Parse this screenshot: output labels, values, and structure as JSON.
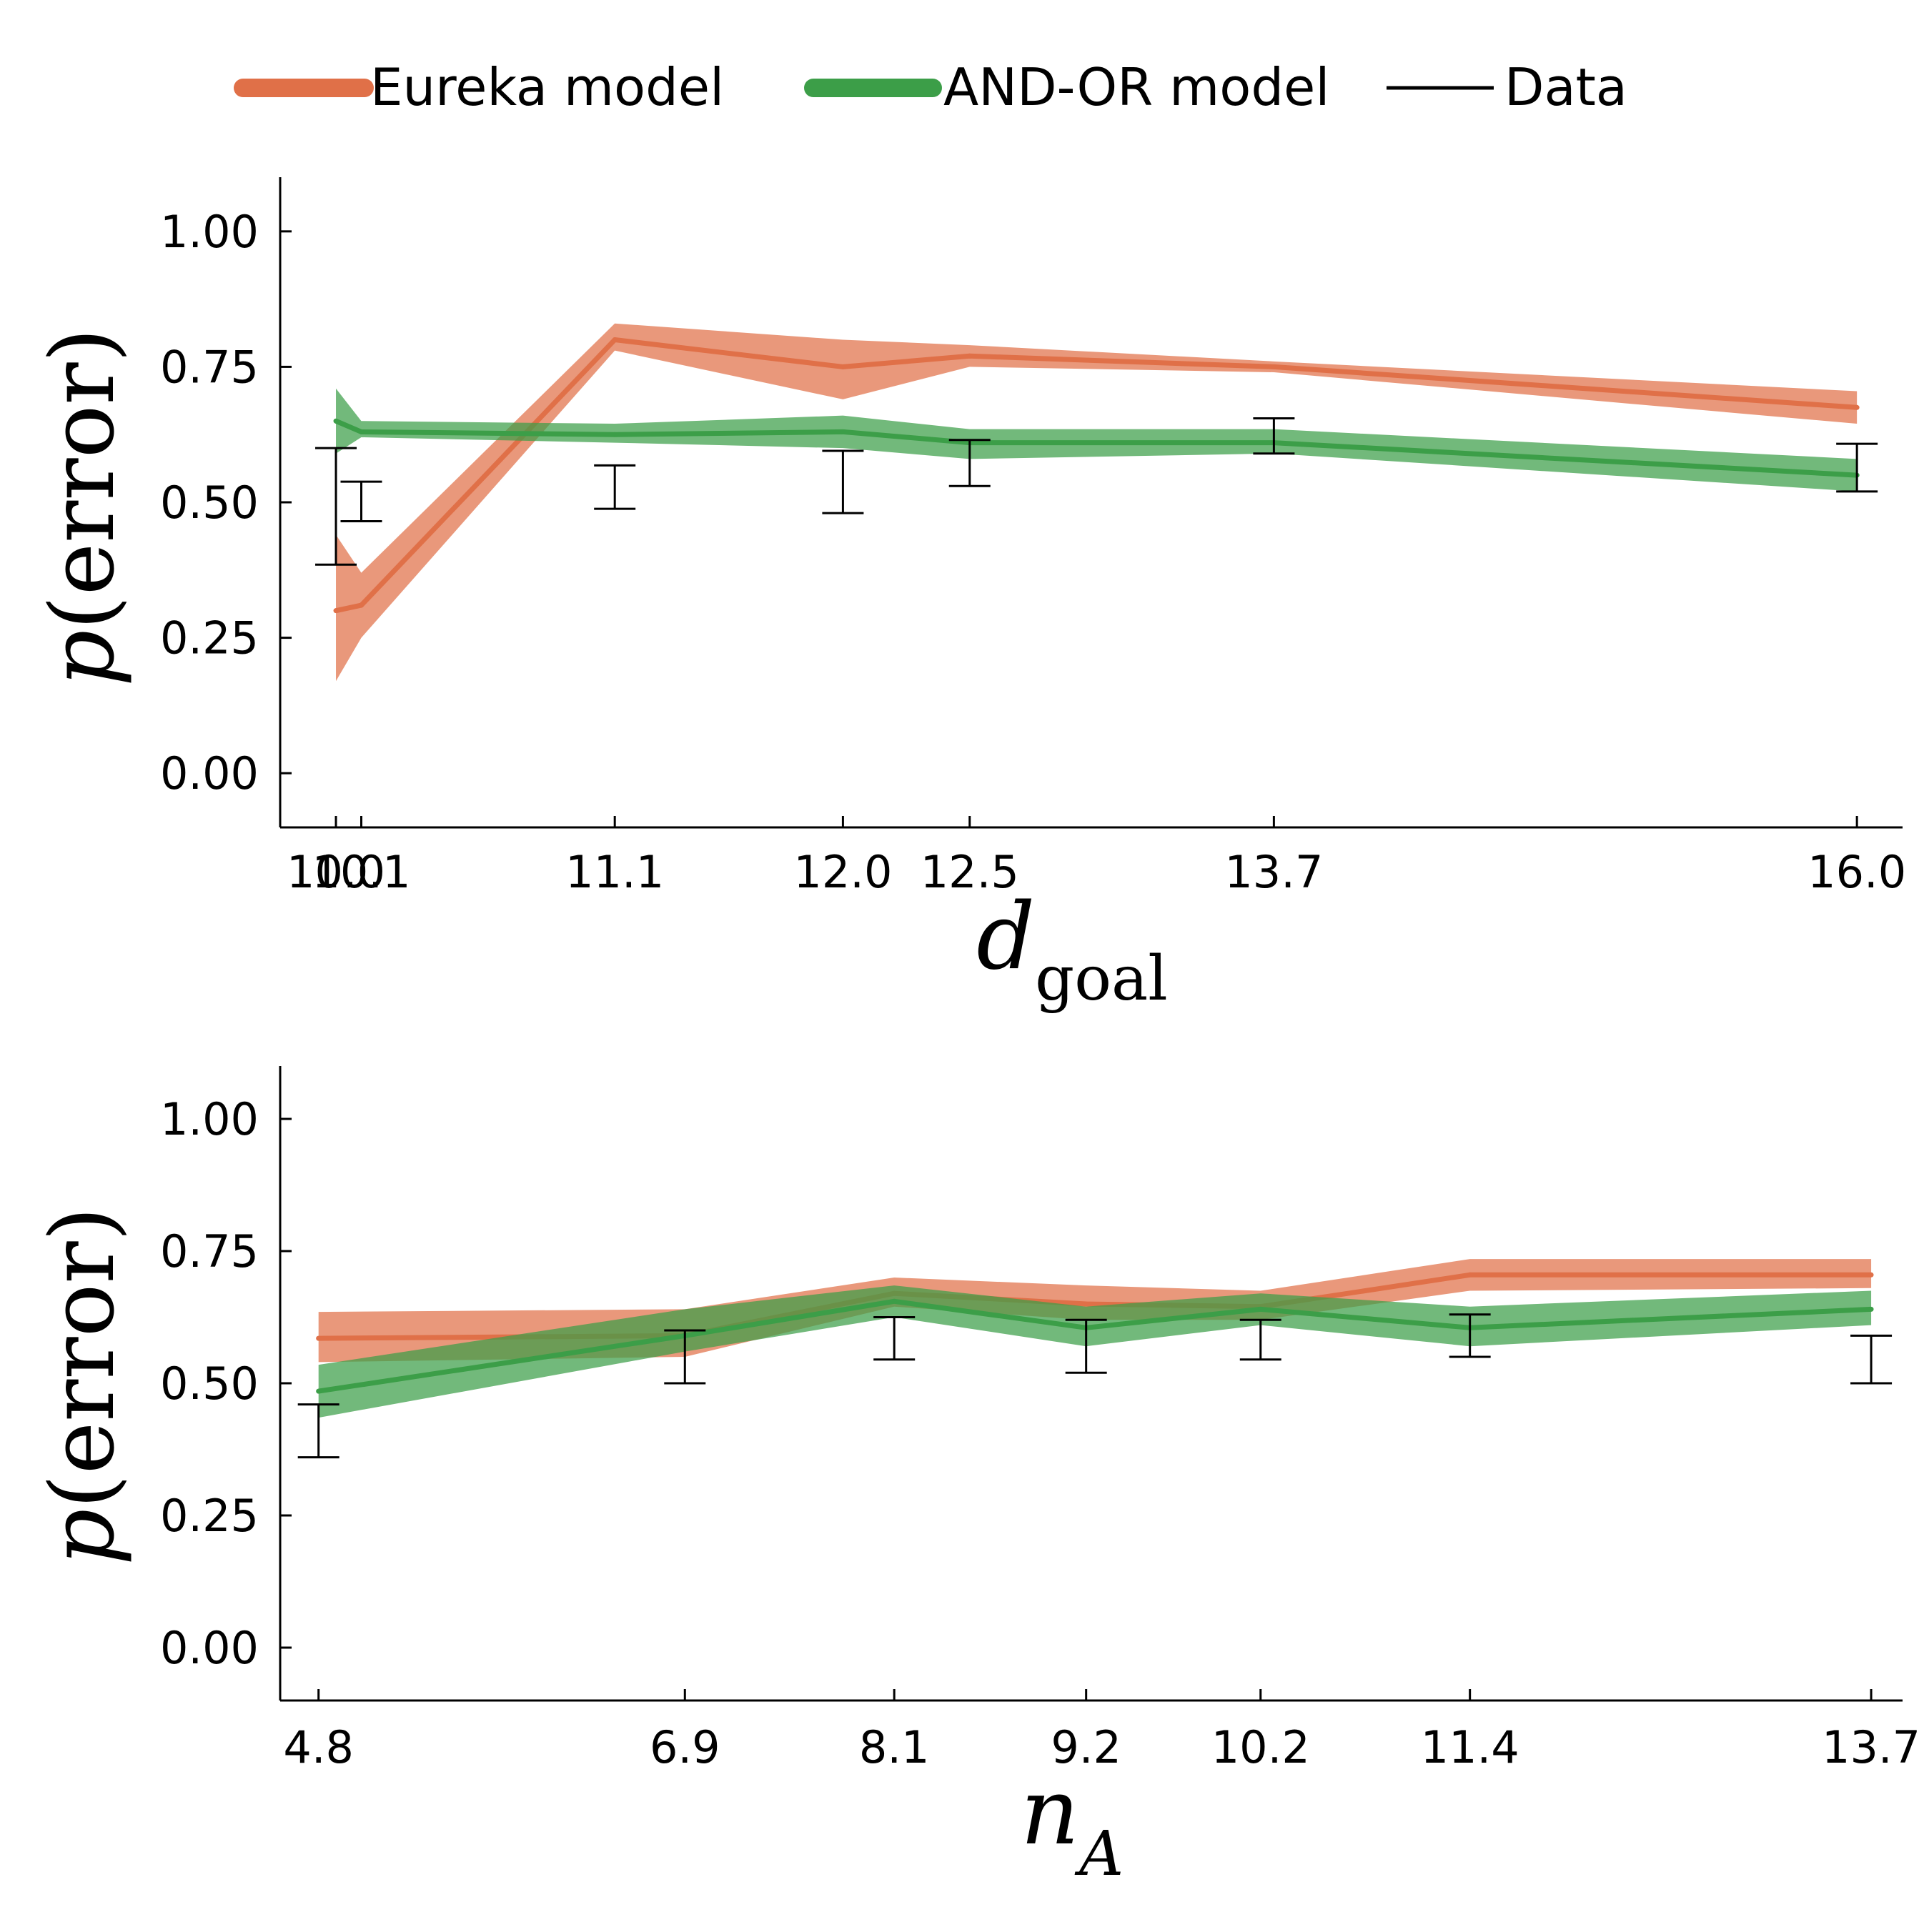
{
  "legend": {
    "position": "top",
    "entries": [
      {
        "label": "Eureka model",
        "color": "#e07048",
        "style": "thick-line"
      },
      {
        "label": "AND-OR model",
        "color": "#3c9e48",
        "style": "thick-line"
      },
      {
        "label": "Data",
        "color": "#000000",
        "style": "thin-line"
      }
    ]
  },
  "colors": {
    "eureka": "#e07048",
    "andor": "#3c9e48",
    "data": "#000000"
  },
  "chart_data": [
    {
      "type": "line",
      "ylabel": "p(error)",
      "xlabel": "d_goal",
      "xlabel_main": "d",
      "xlabel_sub": "goal",
      "ylim": [
        -0.1,
        1.1
      ],
      "xlim": [
        9.78,
        16.18
      ],
      "yticks": [
        0.0,
        0.25,
        0.5,
        0.75,
        1.0
      ],
      "ytick_labels": [
        "0.00",
        "0.25",
        "0.50",
        "0.75",
        "1.00"
      ],
      "x": [
        10.0,
        10.1,
        11.1,
        12.0,
        12.5,
        13.7,
        16.0
      ],
      "xtick_labels": [
        "10.0",
        "10.1",
        "11.1",
        "12.0",
        "12.5",
        "13.7",
        "16.0"
      ],
      "grid": false,
      "series": [
        {
          "name": "Eureka model",
          "key": "eureka",
          "mean": [
            0.3,
            0.31,
            0.8,
            0.75,
            0.77,
            0.75,
            0.675
          ],
          "lower": [
            0.17,
            0.25,
            0.78,
            0.69,
            0.75,
            0.74,
            0.645
          ],
          "upper": [
            0.44,
            0.37,
            0.83,
            0.8,
            0.79,
            0.76,
            0.705
          ]
        },
        {
          "name": "AND-OR model",
          "key": "andor",
          "mean": [
            0.65,
            0.63,
            0.625,
            0.63,
            0.61,
            0.61,
            0.55
          ],
          "lower": [
            0.59,
            0.62,
            0.61,
            0.6,
            0.58,
            0.59,
            0.52
          ],
          "upper": [
            0.71,
            0.65,
            0.645,
            0.66,
            0.635,
            0.635,
            0.58
          ]
        },
        {
          "name": "Data",
          "key": "data",
          "errorbars": true,
          "lower": [
            0.385,
            0.465,
            0.488,
            0.48,
            0.53,
            0.59,
            0.52
          ],
          "upper": [
            0.6,
            0.538,
            0.568,
            0.595,
            0.615,
            0.655,
            0.608
          ]
        }
      ]
    },
    {
      "type": "line",
      "ylabel": "p(error)",
      "xlabel": "n_A",
      "xlabel_main": "n",
      "xlabel_sub": "A",
      "ylim": [
        -0.1,
        1.1
      ],
      "xlim": [
        4.58,
        13.88
      ],
      "yticks": [
        0.0,
        0.25,
        0.5,
        0.75,
        1.0
      ],
      "ytick_labels": [
        "0.00",
        "0.25",
        "0.50",
        "0.75",
        "1.00"
      ],
      "x": [
        4.8,
        6.9,
        8.1,
        9.2,
        10.2,
        11.4,
        13.7
      ],
      "xtick_labels": [
        "4.8",
        "6.9",
        "8.1",
        "9.2",
        "10.2",
        "11.4",
        "13.7"
      ],
      "grid": false,
      "series": [
        {
          "name": "Eureka model",
          "key": "eureka",
          "mean": [
            0.585,
            0.59,
            0.67,
            0.65,
            0.645,
            0.705,
            0.705
          ],
          "lower": [
            0.54,
            0.55,
            0.645,
            0.62,
            0.62,
            0.675,
            0.68
          ],
          "upper": [
            0.635,
            0.64,
            0.7,
            0.685,
            0.675,
            0.735,
            0.735
          ]
        },
        {
          "name": "AND-OR model",
          "key": "andor",
          "mean": [
            0.485,
            0.59,
            0.655,
            0.605,
            0.64,
            0.605,
            0.64
          ],
          "lower": [
            0.435,
            0.56,
            0.625,
            0.57,
            0.61,
            0.57,
            0.61
          ],
          "upper": [
            0.535,
            0.64,
            0.685,
            0.645,
            0.67,
            0.645,
            0.675
          ]
        },
        {
          "name": "Data",
          "key": "data",
          "errorbars": true,
          "lower": [
            0.36,
            0.5,
            0.545,
            0.52,
            0.545,
            0.55,
            0.5
          ],
          "upper": [
            0.46,
            0.6,
            0.625,
            0.62,
            0.62,
            0.63,
            0.59
          ]
        }
      ]
    }
  ]
}
